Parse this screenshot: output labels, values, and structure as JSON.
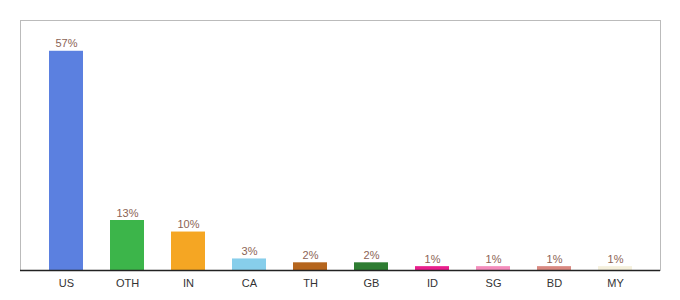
{
  "chart_data": {
    "type": "bar",
    "categories": [
      "US",
      "OTH",
      "IN",
      "CA",
      "TH",
      "GB",
      "ID",
      "SG",
      "BD",
      "MY"
    ],
    "values": [
      57,
      13,
      10,
      3,
      2,
      2,
      1,
      1,
      1,
      1
    ],
    "value_labels": [
      "57%",
      "13%",
      "10%",
      "3%",
      "2%",
      "2%",
      "1%",
      "1%",
      "1%",
      "1%"
    ],
    "colors": [
      "#5b80e0",
      "#3cb54a",
      "#f5a623",
      "#87ceeb",
      "#b5651d",
      "#2e7d32",
      "#e91e8c",
      "#f48cbc",
      "#d98880",
      "#f5f0dc"
    ],
    "ylim": [
      0,
      65
    ],
    "data_labels": true,
    "tick_labels": "x"
  }
}
